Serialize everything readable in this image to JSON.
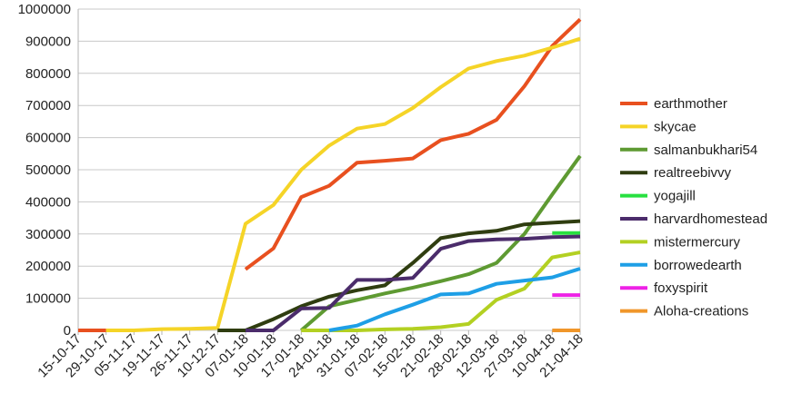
{
  "chart_data": {
    "type": "line",
    "title": "",
    "xlabel": "",
    "ylabel": "",
    "ylim": [
      0,
      1000000
    ],
    "yticks": [
      0,
      100000,
      200000,
      300000,
      400000,
      500000,
      600000,
      700000,
      800000,
      900000,
      1000000
    ],
    "ytick_labels": [
      "0",
      "100000",
      "200000",
      "300000",
      "400000",
      "500000",
      "600000",
      "700000",
      "800000",
      "900000",
      "1000000"
    ],
    "grid": "horizontal",
    "legend_position": "right",
    "categories": [
      "15-10-17",
      "29-10-17",
      "05-11-17",
      "19-11-17",
      "26-11-17",
      "10-12-17",
      "07-01-18",
      "10-01-18",
      "17-01-18",
      "24-01-18",
      "31-01-18",
      "07-02-18",
      "15-02-18",
      "21-02-18",
      "28-02-18",
      "12-03-18",
      "27-03-18",
      "10-04-18",
      "21-04-18"
    ],
    "series": [
      {
        "name": "earthmother",
        "color": "#e8501f",
        "values": [
          0,
          0,
          null,
          null,
          null,
          null,
          190000,
          255000,
          415000,
          450000,
          522000,
          528000,
          535000,
          592000,
          612000,
          655000,
          760000,
          885000,
          968000
        ]
      },
      {
        "name": "skycae",
        "color": "#f5d427",
        "values": [
          null,
          0,
          0,
          4000,
          5000,
          8000,
          332000,
          390000,
          500000,
          575000,
          628000,
          642000,
          692000,
          757000,
          815000,
          838000,
          855000,
          880000,
          908000
        ]
      },
      {
        "name": "salmanbukhari54",
        "color": "#5e9a32",
        "values": [
          null,
          null,
          null,
          null,
          null,
          null,
          null,
          null,
          0,
          75000,
          95000,
          115000,
          133000,
          153000,
          175000,
          210000,
          300000,
          423000,
          543000
        ]
      },
      {
        "name": "realtreebivvy",
        "color": "#2f3d10",
        "values": [
          null,
          null,
          null,
          null,
          null,
          0,
          0,
          35000,
          75000,
          105000,
          125000,
          140000,
          210000,
          287000,
          302000,
          310000,
          330000,
          335000,
          340000
        ]
      },
      {
        "name": "yogajill",
        "color": "#28e040",
        "values": [
          null,
          null,
          null,
          null,
          null,
          null,
          null,
          null,
          null,
          null,
          null,
          null,
          null,
          null,
          null,
          null,
          null,
          303000,
          303000
        ]
      },
      {
        "name": "harvardhomestead",
        "color": "#4b2c6b",
        "values": [
          null,
          null,
          null,
          null,
          null,
          null,
          0,
          0,
          68000,
          70000,
          157000,
          157000,
          163000,
          254000,
          278000,
          283000,
          285000,
          290000,
          292000
        ]
      },
      {
        "name": "mistermercury",
        "color": "#b3d022",
        "values": [
          null,
          null,
          null,
          null,
          null,
          null,
          null,
          null,
          0,
          0,
          0,
          3000,
          5000,
          10000,
          20000,
          95000,
          130000,
          227000,
          243000
        ]
      },
      {
        "name": "borrowedearth",
        "color": "#1e9fe6",
        "values": [
          null,
          null,
          null,
          null,
          null,
          null,
          null,
          null,
          null,
          0,
          15000,
          50000,
          80000,
          112000,
          115000,
          145000,
          155000,
          165000,
          192000
        ]
      },
      {
        "name": "foxyspirit",
        "color": "#ee22e6",
        "values": [
          null,
          null,
          null,
          null,
          null,
          null,
          null,
          null,
          null,
          null,
          null,
          null,
          null,
          null,
          null,
          null,
          null,
          110000,
          110000
        ]
      },
      {
        "name": "Aloha-creations",
        "color": "#f0962a",
        "values": [
          null,
          null,
          null,
          null,
          null,
          null,
          null,
          null,
          null,
          null,
          null,
          null,
          null,
          null,
          null,
          null,
          null,
          0,
          0
        ]
      }
    ]
  }
}
